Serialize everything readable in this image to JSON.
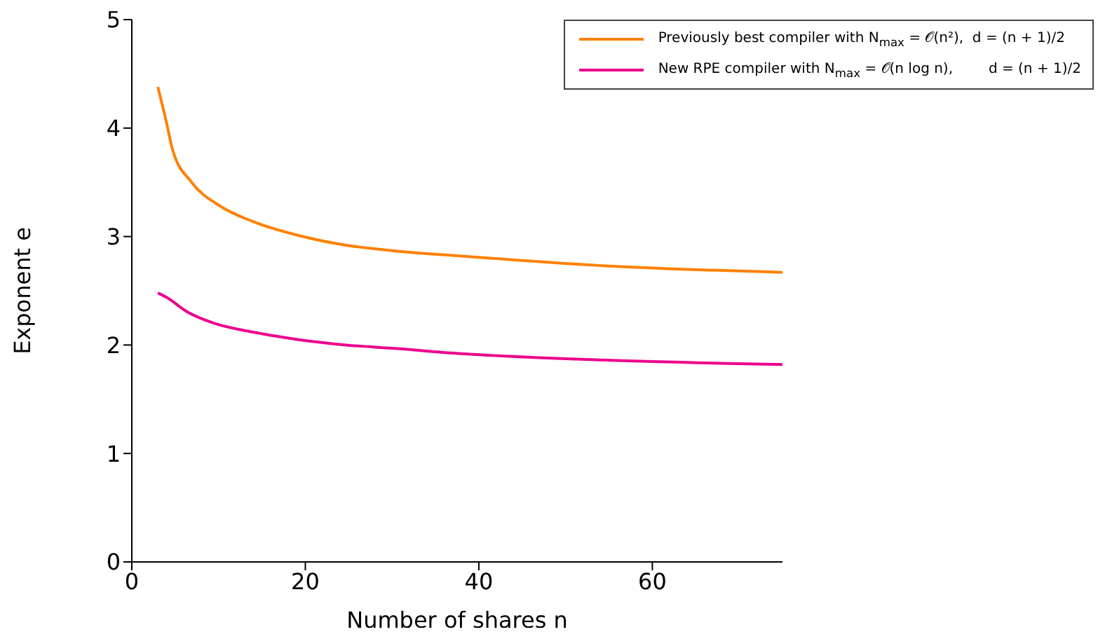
{
  "chart_data": {
    "type": "line",
    "xlabel": "Number of shares n",
    "ylabel": "Exponent e",
    "xlim": [
      0,
      75
    ],
    "xticks": [
      0,
      20,
      40,
      60
    ],
    "ylim": [
      0,
      5
    ],
    "yticks": [
      0,
      1,
      2,
      3,
      4,
      5
    ],
    "legend": "top right",
    "marker": "none",
    "line_style": "solid",
    "series": [
      {
        "name": "Previously best compiler with N$_{max}$ = 𝒪(n²),  d = (n + 1)/2",
        "color": "#ff8000",
        "x": [
          3,
          4,
          4.7,
          6.9,
          10.2,
          13.9,
          19.2,
          24.7,
          30,
          38,
          54.7,
          75
        ],
        "values": [
          4.38,
          4.05,
          3.8,
          3.5,
          3.28,
          3.14,
          3.01,
          2.92,
          2.87,
          2.82,
          2.73,
          2.67
        ]
      },
      {
        "name": "New RPE compiler with N$_{max}$ = 𝒪(n log n),        d = (n + 1)/2",
        "color": "#ec008c",
        "x": [
          3,
          4,
          6.3,
          9.5,
          13.9,
          19.2,
          24.7,
          30,
          38,
          54.7,
          75
        ],
        "values": [
          2.48,
          2.44,
          2.31,
          2.2,
          2.12,
          2.05,
          2.0,
          1.97,
          1.92,
          1.86,
          1.82
        ]
      }
    ]
  }
}
